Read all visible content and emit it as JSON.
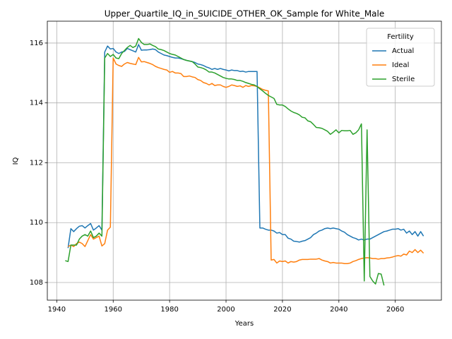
{
  "chart_data": {
    "type": "line",
    "title": "Upper_Quartile_IQ_in_SUICIDE_OTHER_OK_Sample for White_Male",
    "xlabel": "Years",
    "ylabel": "IQ",
    "legend_title": "Fertility",
    "legend": "upper right",
    "grid": true,
    "xlim": [
      1936.65,
      2076.35
    ],
    "ylim": [
      107.41,
      116.73
    ],
    "xticks": [
      1940,
      1960,
      1980,
      2000,
      2020,
      2040,
      2060
    ],
    "yticks": [
      108,
      110,
      112,
      114,
      116
    ],
    "x": [
      1943,
      1944,
      1945,
      1946,
      1947,
      1948,
      1949,
      1950,
      1951,
      1952,
      1953,
      1954,
      1955,
      1956,
      1957,
      1958,
      1959,
      1960,
      1961,
      1962,
      1963,
      1964,
      1965,
      1966,
      1967,
      1968,
      1969,
      1970,
      1971,
      1972,
      1973,
      1974,
      1975,
      1976,
      1977,
      1978,
      1979,
      1980,
      1981,
      1982,
      1983,
      1984,
      1985,
      1986,
      1987,
      1988,
      1989,
      1990,
      1991,
      1992,
      1993,
      1994,
      1995,
      1996,
      1997,
      1998,
      1999,
      2000,
      2001,
      2002,
      2003,
      2004,
      2005,
      2006,
      2007,
      2008,
      2009,
      2010,
      2011,
      2012,
      2013,
      2014,
      2015,
      2016,
      2017,
      2018,
      2019,
      2020,
      2021,
      2022,
      2023,
      2024,
      2025,
      2026,
      2027,
      2028,
      2029,
      2030,
      2031,
      2032,
      2033,
      2034,
      2035,
      2036,
      2037,
      2038,
      2039,
      2040,
      2041,
      2042,
      2043,
      2044,
      2045,
      2046,
      2047,
      2048,
      2049,
      2050,
      2051,
      2052,
      2053,
      2054,
      2055,
      2056,
      2057,
      2058,
      2059,
      2060,
      2061,
      2062,
      2063,
      2064,
      2065,
      2066,
      2067,
      2068,
      2069,
      2070
    ],
    "series": [
      {
        "name": "Actual",
        "color": "#1f77b4",
        "values": [
          null,
          109.15,
          109.8,
          109.7,
          109.8,
          109.88,
          109.9,
          109.82,
          109.9,
          109.97,
          109.75,
          109.82,
          109.9,
          109.75,
          115.7,
          115.9,
          115.8,
          115.82,
          115.7,
          115.65,
          115.7,
          115.72,
          115.82,
          115.78,
          115.74,
          115.7,
          115.95,
          115.76,
          115.77,
          115.77,
          115.78,
          115.8,
          115.78,
          115.7,
          115.65,
          115.6,
          115.58,
          115.55,
          115.52,
          115.5,
          115.5,
          115.48,
          115.45,
          115.42,
          115.4,
          115.38,
          115.35,
          115.3,
          115.28,
          115.25,
          115.2,
          115.17,
          115.12,
          115.15,
          115.12,
          115.15,
          115.12,
          115.1,
          115.07,
          115.1,
          115.08,
          115.08,
          115.05,
          115.06,
          115.03,
          115.05,
          115.05,
          115.05,
          115.05,
          109.82,
          109.82,
          109.78,
          109.75,
          109.75,
          109.72,
          109.65,
          109.67,
          109.6,
          109.6,
          109.48,
          109.45,
          109.38,
          109.37,
          109.35,
          109.38,
          109.4,
          109.45,
          109.5,
          109.6,
          109.65,
          109.72,
          109.75,
          109.8,
          109.82,
          109.8,
          109.82,
          109.8,
          109.78,
          109.72,
          109.68,
          109.6,
          109.55,
          109.5,
          109.47,
          109.42,
          109.45,
          109.42,
          109.45,
          109.45,
          109.5,
          109.55,
          109.6,
          109.65,
          109.7,
          109.72,
          109.75,
          109.78,
          109.78,
          109.8,
          109.75,
          109.78,
          109.65,
          109.72,
          109.6,
          109.7,
          109.55,
          109.7,
          109.55
        ]
      },
      {
        "name": "Ideal",
        "color": "#ff7f0e",
        "values": [
          null,
          109.2,
          109.25,
          109.2,
          109.3,
          109.35,
          109.3,
          109.2,
          109.4,
          109.6,
          109.45,
          109.5,
          109.55,
          109.22,
          109.3,
          109.75,
          109.85,
          115.5,
          115.3,
          115.25,
          115.22,
          115.3,
          115.35,
          115.32,
          115.3,
          115.28,
          115.52,
          115.37,
          115.38,
          115.35,
          115.32,
          115.28,
          115.22,
          115.18,
          115.15,
          115.12,
          115.1,
          115.02,
          115.05,
          115.0,
          115.0,
          114.98,
          114.88,
          114.88,
          114.9,
          114.87,
          114.85,
          114.78,
          114.75,
          114.68,
          114.65,
          114.6,
          114.65,
          114.58,
          114.6,
          114.6,
          114.55,
          114.52,
          114.55,
          114.6,
          114.58,
          114.55,
          114.57,
          114.52,
          114.58,
          114.55,
          114.58,
          114.57,
          114.55,
          114.5,
          114.45,
          114.42,
          114.4,
          108.75,
          108.77,
          108.65,
          108.72,
          108.7,
          108.72,
          108.65,
          108.7,
          108.68,
          108.7,
          108.75,
          108.77,
          108.77,
          108.77,
          108.78,
          108.78,
          108.78,
          108.8,
          108.75,
          108.72,
          108.7,
          108.65,
          108.67,
          108.65,
          108.65,
          108.65,
          108.63,
          108.63,
          108.65,
          108.7,
          108.73,
          108.77,
          108.8,
          108.82,
          108.83,
          108.82,
          108.8,
          108.8,
          108.78,
          108.8,
          108.8,
          108.82,
          108.83,
          108.85,
          108.88,
          108.9,
          108.88,
          108.95,
          108.92,
          109.05,
          109.0,
          109.1,
          109.0,
          109.08,
          108.98
        ]
      },
      {
        "name": "Sterile",
        "color": "#2ca02c",
        "values": [
          108.73,
          108.7,
          109.25,
          109.25,
          109.25,
          109.45,
          109.55,
          109.6,
          109.55,
          109.72,
          109.5,
          109.55,
          109.65,
          109.55,
          115.5,
          115.65,
          115.55,
          115.62,
          115.5,
          115.48,
          115.65,
          115.75,
          115.85,
          115.92,
          115.85,
          115.9,
          116.15,
          116.02,
          115.95,
          115.95,
          115.97,
          115.92,
          115.88,
          115.8,
          115.78,
          115.75,
          115.7,
          115.65,
          115.62,
          115.6,
          115.55,
          115.5,
          115.45,
          115.42,
          115.4,
          115.38,
          115.3,
          115.2,
          115.18,
          115.15,
          115.1,
          115.03,
          115.03,
          115.0,
          114.95,
          114.9,
          114.85,
          114.82,
          114.8,
          114.8,
          114.78,
          114.75,
          114.75,
          114.72,
          114.68,
          114.65,
          114.62,
          114.6,
          114.55,
          114.47,
          114.4,
          114.32,
          114.25,
          114.2,
          114.15,
          113.95,
          113.93,
          113.93,
          113.88,
          113.8,
          113.73,
          113.68,
          113.65,
          113.6,
          113.52,
          113.5,
          113.4,
          113.37,
          113.28,
          113.18,
          113.17,
          113.15,
          113.1,
          113.05,
          112.95,
          113.02,
          113.1,
          113.0,
          113.08,
          113.07,
          113.07,
          113.08,
          112.95,
          113.0,
          113.1,
          113.3,
          108.05,
          113.1,
          108.2,
          108.05,
          107.95,
          108.3,
          108.28,
          107.9,
          null,
          null,
          null,
          null,
          null,
          null,
          null,
          null,
          null,
          null,
          null,
          null,
          null,
          null
        ]
      }
    ]
  }
}
